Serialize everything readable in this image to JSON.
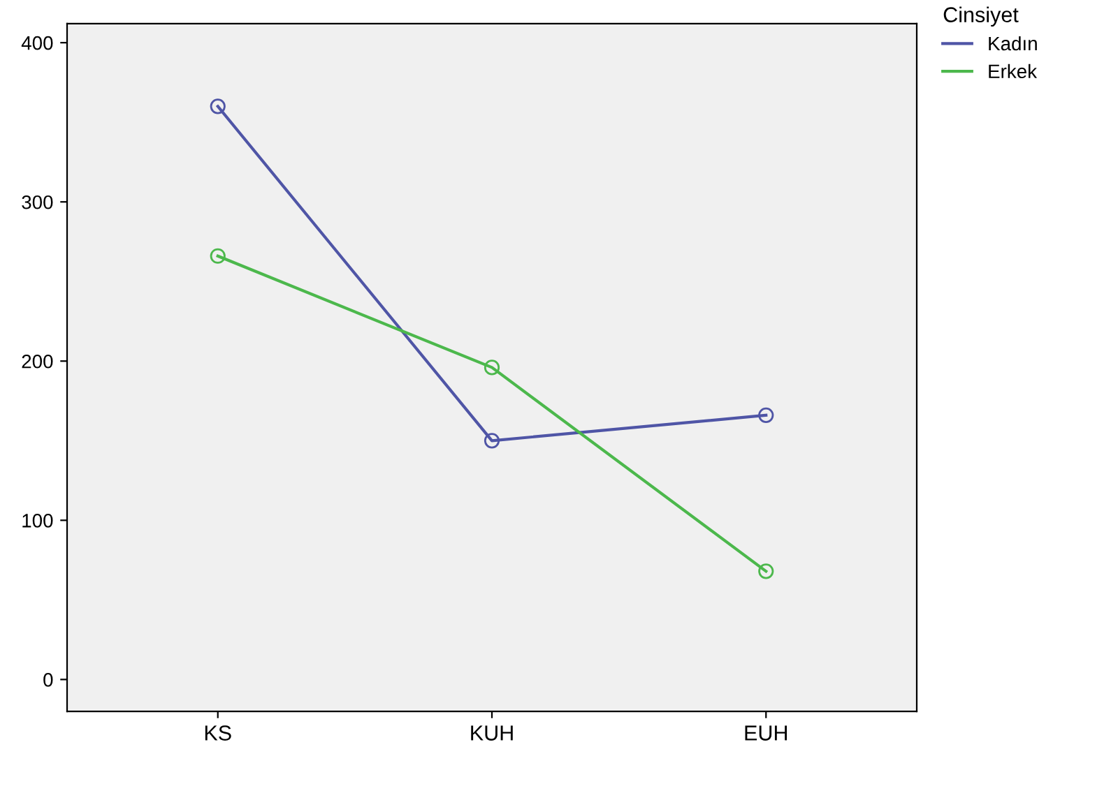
{
  "chart_data": {
    "type": "line",
    "categories": [
      "KS",
      "KUH",
      "EUH"
    ],
    "series": [
      {
        "name": "Kadın",
        "color": "#4f55a6",
        "values": [
          360,
          150,
          166
        ]
      },
      {
        "name": "Erkek",
        "color": "#4cb84c",
        "values": [
          266,
          196,
          68
        ]
      }
    ],
    "legend_title": "Cinsiyet",
    "legend": "top right",
    "marker": "circle",
    "line_style": "solid",
    "grid": false,
    "ylim": [
      -20,
      412
    ],
    "yticks": [
      0,
      100,
      200,
      300,
      400
    ]
  }
}
